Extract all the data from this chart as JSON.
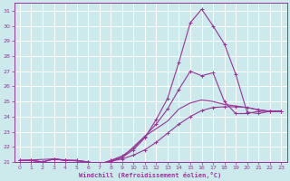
{
  "background_color": "#cce9ec",
  "grid_color": "#ffffff",
  "line_color": "#993399",
  "xlabel": "Windchill (Refroidissement éolien,°C)",
  "ylim": [
    21,
    31.5
  ],
  "xlim": [
    -0.5,
    23.5
  ],
  "yticks": [
    21,
    22,
    23,
    24,
    25,
    26,
    27,
    28,
    29,
    30,
    31
  ],
  "xticks": [
    0,
    1,
    2,
    3,
    4,
    5,
    6,
    7,
    8,
    9,
    10,
    11,
    12,
    13,
    14,
    15,
    16,
    17,
    18,
    19,
    20,
    21,
    22,
    23
  ],
  "line_peak_x": [
    0,
    1,
    2,
    3,
    4,
    5,
    6,
    7,
    8,
    9,
    10,
    11,
    12,
    13,
    14,
    15,
    16,
    17,
    18,
    19,
    20,
    21,
    22,
    23
  ],
  "line_peak_y": [
    21.1,
    21.1,
    21.0,
    21.2,
    21.1,
    21.1,
    21.0,
    20.85,
    21.1,
    21.3,
    21.8,
    22.6,
    23.8,
    25.2,
    27.6,
    30.2,
    31.1,
    30.0,
    28.8,
    26.8,
    24.3,
    24.2,
    24.35,
    24.35
  ],
  "line_mid_x": [
    0,
    1,
    2,
    3,
    4,
    5,
    6,
    7,
    8,
    9,
    10,
    11,
    12,
    13,
    14,
    15,
    16,
    17,
    18,
    19,
    20,
    21,
    22,
    23
  ],
  "line_mid_y": [
    21.1,
    21.1,
    21.0,
    21.2,
    21.1,
    21.1,
    21.0,
    20.85,
    21.1,
    21.4,
    21.9,
    22.7,
    23.5,
    24.5,
    25.8,
    27.0,
    26.7,
    26.9,
    25.0,
    24.2,
    24.2,
    24.35,
    24.35,
    24.35
  ],
  "line_low_x": [
    0,
    1,
    2,
    3,
    4,
    5,
    6,
    7,
    8,
    9,
    10,
    11,
    12,
    13,
    14,
    15,
    16,
    17,
    18,
    19,
    20,
    21,
    22,
    23
  ],
  "line_low_y": [
    21.1,
    21.1,
    21.0,
    21.2,
    21.1,
    21.1,
    21.0,
    20.85,
    21.05,
    21.2,
    21.45,
    21.8,
    22.3,
    22.9,
    23.5,
    24.0,
    24.4,
    24.6,
    24.65,
    24.65,
    24.6,
    24.45,
    24.35,
    24.35
  ],
  "line_diag_x": [
    0,
    3,
    6,
    7,
    8,
    9,
    10,
    11,
    12,
    13,
    14,
    15,
    16,
    17,
    18,
    19,
    20,
    21,
    22,
    23
  ],
  "line_diag_y": [
    21.1,
    21.2,
    21.0,
    20.85,
    21.0,
    21.3,
    22.0,
    22.7,
    23.2,
    23.7,
    24.5,
    24.9,
    25.1,
    25.0,
    24.8,
    24.7,
    24.6,
    24.45,
    24.35,
    24.35
  ]
}
